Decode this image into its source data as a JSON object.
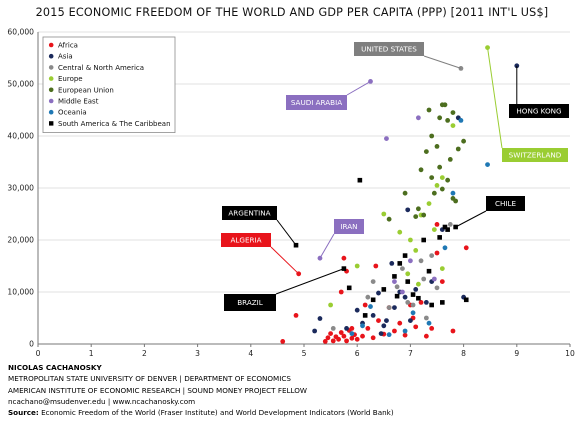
{
  "chart_data": {
    "type": "scatter",
    "title": "2015 ECONOMIC FREEDOM OF THE WORLD AND GDP PER CAPITA (PPP) [2011 INT'L US$]",
    "xlabel": "",
    "ylabel": "",
    "xlim": [
      0,
      10
    ],
    "ylim": [
      0,
      60000
    ],
    "x_ticks": [
      "0",
      "1",
      "2",
      "3",
      "4",
      "5",
      "6",
      "7",
      "8",
      "9",
      "10"
    ],
    "y_ticks": [
      "0",
      "10,000",
      "20,000",
      "30,000",
      "40,000",
      "50,000",
      "60,000"
    ],
    "grid": "horizontal",
    "legend_position": "top-left",
    "series": [
      {
        "name": "Africa",
        "color": "#e8141b",
        "marker": "circle",
        "points": [
          [
            4.6,
            500
          ],
          [
            4.85,
            5500
          ],
          [
            4.9,
            13500
          ],
          [
            5.4,
            500
          ],
          [
            5.45,
            1200
          ],
          [
            5.5,
            2000
          ],
          [
            5.55,
            600
          ],
          [
            5.6,
            1400
          ],
          [
            5.65,
            900
          ],
          [
            5.7,
            2200
          ],
          [
            5.75,
            1500
          ],
          [
            5.8,
            600
          ],
          [
            5.85,
            2600
          ],
          [
            5.9,
            1100
          ],
          [
            5.95,
            1800
          ],
          [
            6.0,
            900
          ],
          [
            5.7,
            10000
          ],
          [
            5.75,
            16500
          ],
          [
            5.8,
            14000
          ],
          [
            6.1,
            1500
          ],
          [
            6.2,
            3000
          ],
          [
            6.3,
            1200
          ],
          [
            6.4,
            4500
          ],
          [
            6.5,
            1900
          ],
          [
            6.6,
            7000
          ],
          [
            6.7,
            2500
          ],
          [
            6.8,
            4000
          ],
          [
            6.9,
            1700
          ],
          [
            7.0,
            7500
          ],
          [
            7.1,
            3300
          ],
          [
            7.2,
            8000
          ],
          [
            7.3,
            1500
          ],
          [
            7.4,
            3000
          ],
          [
            7.5,
            23000
          ],
          [
            7.5,
            17500
          ],
          [
            7.6,
            12000
          ],
          [
            7.8,
            2500
          ],
          [
            8.05,
            18500
          ],
          [
            5.9,
            3000
          ],
          [
            6.15,
            7500
          ],
          [
            7.05,
            5000
          ],
          [
            6.35,
            15000
          ]
        ]
      },
      {
        "name": "Asia",
        "color": "#1b2a5c",
        "marker": "circle",
        "points": [
          [
            5.2,
            2500
          ],
          [
            5.3,
            4900
          ],
          [
            5.8,
            3000
          ],
          [
            6.0,
            6500
          ],
          [
            6.1,
            4000
          ],
          [
            6.3,
            5500
          ],
          [
            6.4,
            9800
          ],
          [
            6.5,
            3500
          ],
          [
            6.55,
            4500
          ],
          [
            6.7,
            7000
          ],
          [
            6.8,
            10000
          ],
          [
            6.9,
            9000
          ],
          [
            6.95,
            25800
          ],
          [
            7.0,
            4500
          ],
          [
            7.1,
            10500
          ],
          [
            7.3,
            8000
          ],
          [
            7.4,
            12000
          ],
          [
            7.6,
            22000
          ],
          [
            7.9,
            43500
          ],
          [
            8.0,
            9000
          ],
          [
            9.0,
            53500
          ],
          [
            6.45,
            2000
          ],
          [
            6.65,
            15500
          ]
        ]
      },
      {
        "name": "Central & North America",
        "color": "#8a8a8a",
        "marker": "circle",
        "points": [
          [
            5.55,
            3000
          ],
          [
            6.2,
            9000
          ],
          [
            6.3,
            12000
          ],
          [
            6.6,
            7000
          ],
          [
            6.75,
            11000
          ],
          [
            6.85,
            14500
          ],
          [
            7.05,
            7500
          ],
          [
            7.2,
            16000
          ],
          [
            7.3,
            5000
          ],
          [
            7.4,
            17000
          ],
          [
            7.5,
            10800
          ],
          [
            7.75,
            23000
          ],
          [
            7.95,
            53000
          ],
          [
            7.25,
            12500
          ],
          [
            6.95,
            8000
          ]
        ]
      },
      {
        "name": "Europe",
        "color": "#9acd32",
        "marker": "circle",
        "points": [
          [
            5.5,
            7500
          ],
          [
            6.0,
            15000
          ],
          [
            6.5,
            25000
          ],
          [
            6.95,
            13500
          ],
          [
            7.0,
            20000
          ],
          [
            7.2,
            24800
          ],
          [
            7.45,
            22000
          ],
          [
            7.5,
            30500
          ],
          [
            7.6,
            32000
          ],
          [
            7.8,
            42000
          ],
          [
            8.45,
            57000
          ],
          [
            7.1,
            18000
          ],
          [
            7.35,
            27000
          ],
          [
            6.8,
            21500
          ],
          [
            7.6,
            14500
          ],
          [
            7.15,
            11500
          ]
        ]
      },
      {
        "name": "European Union",
        "color": "#4d6e1f",
        "marker": "circle",
        "points": [
          [
            6.6,
            24000
          ],
          [
            6.9,
            29000
          ],
          [
            7.1,
            24500
          ],
          [
            7.15,
            26000
          ],
          [
            7.2,
            33500
          ],
          [
            7.3,
            37000
          ],
          [
            7.35,
            45000
          ],
          [
            7.4,
            40000
          ],
          [
            7.45,
            29000
          ],
          [
            7.5,
            38000
          ],
          [
            7.55,
            43500
          ],
          [
            7.6,
            46000
          ],
          [
            7.65,
            46000
          ],
          [
            7.7,
            43000
          ],
          [
            7.75,
            35500
          ],
          [
            7.8,
            28000
          ],
          [
            7.85,
            27500
          ],
          [
            7.9,
            37500
          ],
          [
            8.0,
            39000
          ],
          [
            7.4,
            32000
          ],
          [
            7.55,
            34000
          ],
          [
            7.25,
            24800
          ],
          [
            7.6,
            29800
          ],
          [
            7.7,
            31500
          ],
          [
            7.8,
            44500
          ]
        ]
      },
      {
        "name": "Middle East",
        "color": "#8b6fc0",
        "marker": "circle",
        "points": [
          [
            5.3,
            16500
          ],
          [
            6.25,
            50500
          ],
          [
            6.55,
            39500
          ],
          [
            6.7,
            12000
          ],
          [
            7.15,
            43500
          ],
          [
            6.85,
            10000
          ],
          [
            7.45,
            12500
          ],
          [
            7.0,
            16000
          ]
        ]
      },
      {
        "name": "Oceania",
        "color": "#1f78b4",
        "marker": "circle",
        "points": [
          [
            5.9,
            2000
          ],
          [
            6.1,
            3500
          ],
          [
            6.6,
            1800
          ],
          [
            6.9,
            2500
          ],
          [
            7.05,
            6000
          ],
          [
            7.35,
            4000
          ],
          [
            7.8,
            29000
          ],
          [
            7.95,
            43000
          ],
          [
            8.45,
            34500
          ],
          [
            6.25,
            7200
          ],
          [
            7.65,
            18500
          ]
        ]
      },
      {
        "name": "South America & The Caribbean",
        "color": "#000000",
        "marker": "square",
        "points": [
          [
            4.85,
            19000
          ],
          [
            5.75,
            14500
          ],
          [
            5.85,
            10800
          ],
          [
            6.05,
            31500
          ],
          [
            6.3,
            8500
          ],
          [
            6.5,
            10500
          ],
          [
            6.7,
            13000
          ],
          [
            6.8,
            15500
          ],
          [
            6.9,
            17000
          ],
          [
            7.05,
            9500
          ],
          [
            7.25,
            20000
          ],
          [
            7.4,
            7500
          ],
          [
            7.55,
            20500
          ],
          [
            7.7,
            22000
          ],
          [
            7.85,
            22500
          ],
          [
            7.15,
            8800
          ],
          [
            6.95,
            12000
          ],
          [
            7.35,
            14000
          ],
          [
            6.15,
            5500
          ],
          [
            6.75,
            9200
          ],
          [
            7.6,
            8000
          ],
          [
            8.05,
            8500
          ],
          [
            7.65,
            22500
          ]
        ]
      }
    ],
    "annotations": [
      {
        "label": "UNITED STATES",
        "target": [
          7.95,
          53000
        ],
        "color": "#7f7f7f"
      },
      {
        "label": "HONG KONG",
        "target": [
          9.0,
          53500
        ],
        "color": "#000000"
      },
      {
        "label": "SAUDI ARABIA",
        "target": [
          6.25,
          50500
        ],
        "color": "#8b6fc0"
      },
      {
        "label": "SWITZERLAND",
        "target": [
          8.45,
          57000
        ],
        "color": "#9acd32"
      },
      {
        "label": "ARGENTINA",
        "target": [
          4.85,
          19000
        ],
        "color": "#000000"
      },
      {
        "label": "ALGERIA",
        "target": [
          4.9,
          13500
        ],
        "color": "#e8141b"
      },
      {
        "label": "IRAN",
        "target": [
          5.3,
          16500
        ],
        "color": "#8b6fc0"
      },
      {
        "label": "CHILE",
        "target": [
          7.85,
          22500
        ],
        "color": "#000000"
      },
      {
        "label": "BRAZIL",
        "target": [
          5.75,
          14500
        ],
        "color": "#000000"
      }
    ]
  },
  "footer": {
    "author": "NICOLAS CACHANOSKY",
    "line1": "METROPOLITAN STATE UNIVERSITY OF DENVER | DEPARTMENT OF ECONOMICS",
    "line2": "AMERICAN INSTITUTE OF ECONOMIC RESEARCH | SOUND MONEY PROJECT FELLOW",
    "line3": "ncachano@msudenver.edu | www.ncachanosky.com",
    "source_label": "Source:",
    "source_text": " Economic Freedom of the World (Fraser Institute) and World Development Indicators (World Bank)"
  }
}
